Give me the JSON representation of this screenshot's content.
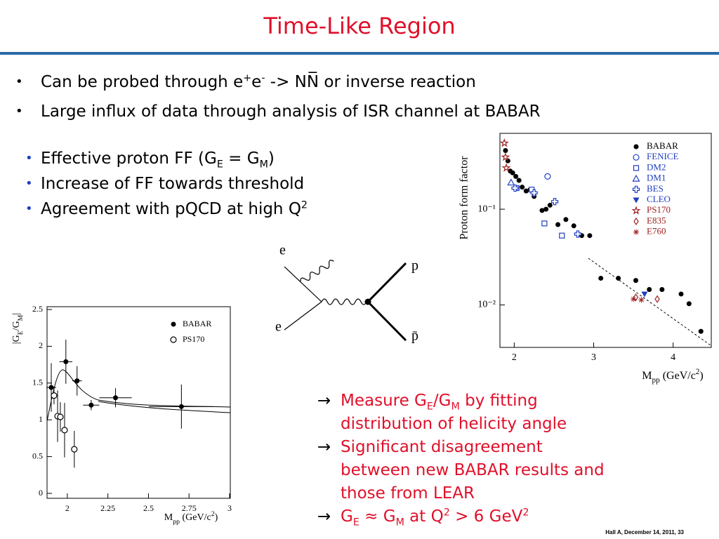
{
  "title": "Time-Like Region",
  "bullets": [
    [
      {
        "t": "Can be probed through e"
      },
      {
        "sup": "+"
      },
      {
        "t": "e"
      },
      {
        "sup": "-"
      },
      {
        "t": " -> NN̅ or inverse reaction"
      }
    ],
    [
      {
        "t": "Large influx of data through analysis of ISR channel at BABAR"
      }
    ]
  ],
  "sub_bullets": [
    [
      {
        "t": "Effective proton FF (G"
      },
      {
        "sub": "E"
      },
      {
        "t": " = G"
      },
      {
        "sub": "M"
      },
      {
        "t": ")"
      }
    ],
    [
      {
        "t": "Increase of FF towards threshold"
      }
    ],
    [
      {
        "t": "Agreement with pQCD at high Q"
      },
      {
        "sup": "2"
      }
    ]
  ],
  "notes": [
    [
      {
        "t": "Measure G"
      },
      {
        "sub": "E"
      },
      {
        "t": "/G"
      },
      {
        "sub": "M"
      },
      {
        "t": " by fitting distribution of helicity angle"
      }
    ],
    [
      {
        "t": "Significant disagreement between new BABAR results and those from LEAR"
      }
    ],
    [
      {
        "t": "G"
      },
      {
        "sub": "E"
      },
      {
        "t": " ≈ G"
      },
      {
        "sub": "M"
      },
      {
        "t": " at Q"
      },
      {
        "sup": "2"
      },
      {
        "t": " > 6 GeV"
      },
      {
        "sup": "2"
      }
    ]
  ],
  "diagram": {
    "labels": [
      "e",
      "e",
      "p",
      "p̄"
    ]
  },
  "footer": "Hall A, December 14, 2011, 33",
  "chart_data": [
    {
      "type": "scatter",
      "y_label": [
        {
          "t": "|G"
        },
        {
          "sub": "E"
        },
        {
          "t": "/G"
        },
        {
          "sub": "M"
        },
        {
          "t": "|"
        }
      ],
      "x_label": [
        {
          "t": "M"
        },
        {
          "sub": "pp"
        },
        {
          "t": " (GeV/c"
        },
        {
          "sup": "2"
        },
        {
          "t": ")"
        }
      ],
      "xlim": [
        1.875,
        3
      ],
      "xticks": [
        2,
        2.25,
        2.5,
        2.75,
        3
      ],
      "ylim": [
        0,
        2.5
      ],
      "yticks": [
        0,
        0.5,
        1,
        1.5,
        2,
        2.5
      ],
      "log_y": false,
      "series": [
        {
          "name": "BABAR",
          "marker": "filled-circle",
          "color": "#000000",
          "x": [
            1.901,
            1.991,
            2.06,
            2.147,
            2.297,
            2.703
          ],
          "values": [
            1.44,
            1.79,
            1.53,
            1.2,
            1.3,
            1.18
          ],
          "errors": [
            0.33,
            0.3,
            0.2,
            0.07,
            0.13,
            0.3
          ],
          "x_errors": [
            0.03,
            0.04,
            0.03,
            0.05,
            0.1,
            0.2
          ]
        },
        {
          "name": "PS170",
          "marker": "open-circle",
          "color": "#000000",
          "x": [
            1.918,
            1.94,
            1.957,
            1.983,
            2.043
          ],
          "values": [
            1.33,
            1.05,
            1.04,
            0.86,
            0.6
          ],
          "errors": [
            0.12,
            0.35,
            0.2,
            0.37,
            0.25
          ]
        }
      ]
    },
    {
      "type": "scatter",
      "y_label": "Proton form factor",
      "x_label": [
        {
          "t": "M"
        },
        {
          "sub": "pp"
        },
        {
          "t": " (GeV/c"
        },
        {
          "sup": "2"
        },
        {
          "t": ")"
        }
      ],
      "xlim": [
        1.82,
        4.48
      ],
      "xticks": [
        2,
        3,
        4
      ],
      "ylim": [
        0.0036,
        0.62
      ],
      "yticks": [
        {
          "value": 0.1,
          "label": "10⁻¹"
        },
        {
          "value": 0.01,
          "label": "10⁻²"
        }
      ],
      "log_y": true,
      "series": [
        {
          "name": "BABAR",
          "marker": "filled-circle",
          "color": "#000000",
          "x": [
            1.89,
            1.92,
            1.95,
            1.98,
            2.02,
            2.06,
            2.1,
            2.15,
            2.2,
            2.25,
            2.35,
            2.4,
            2.45,
            2.55,
            2.65,
            2.75,
            2.85,
            2.95,
            3.09,
            3.31,
            3.53,
            3.7,
            3.86,
            4.1,
            4.2,
            4.35
          ],
          "values": [
            0.41,
            0.32,
            0.25,
            0.24,
            0.22,
            0.2,
            0.17,
            0.155,
            0.16,
            0.136,
            0.097,
            0.1,
            0.11,
            0.069,
            0.078,
            0.067,
            0.053,
            0.053,
            0.019,
            0.019,
            0.018,
            0.0145,
            0.0145,
            0.013,
            0.0103,
            0.0053
          ]
        },
        {
          "name": "FENICE",
          "marker": "open-circle",
          "color": "#1f3fbf",
          "x": [
            2.42
          ],
          "values": [
            0.22
          ]
        },
        {
          "name": "DM2",
          "marker": "open-square",
          "color": "#1f3fbf",
          "x": [
            2.03,
            2.22,
            2.38,
            2.6
          ],
          "values": [
            0.166,
            0.16,
            0.071,
            0.053
          ]
        },
        {
          "name": "DM1",
          "marker": "open-triangle",
          "color": "#1f3fbf",
          "x": [
            1.96
          ],
          "values": [
            0.19
          ]
        },
        {
          "name": "BES",
          "marker": "open-cross",
          "color": "#1f3fbf",
          "x": [
            2.01,
            2.25,
            2.51,
            2.8
          ],
          "values": [
            0.166,
            0.148,
            0.12,
            0.055
          ]
        },
        {
          "name": "CLEO",
          "marker": "filled-triangle-down",
          "color": "#1f3fbf",
          "x": [
            3.64
          ],
          "values": [
            0.013
          ]
        },
        {
          "name": "PS170",
          "marker": "open-star",
          "color": "#a02020",
          "x": [
            1.876,
            1.89,
            1.9
          ],
          "values": [
            0.49,
            0.35,
            0.27
          ]
        },
        {
          "name": "E835",
          "marker": "open-diamond",
          "color": "#a02020",
          "x": [
            3.53,
            3.8
          ],
          "values": [
            0.012,
            0.0115
          ]
        },
        {
          "name": "E760",
          "marker": "asterisk",
          "color": "#a02020",
          "x": [
            3.5,
            3.6
          ],
          "values": [
            0.0115,
            0.0113
          ]
        }
      ]
    }
  ]
}
